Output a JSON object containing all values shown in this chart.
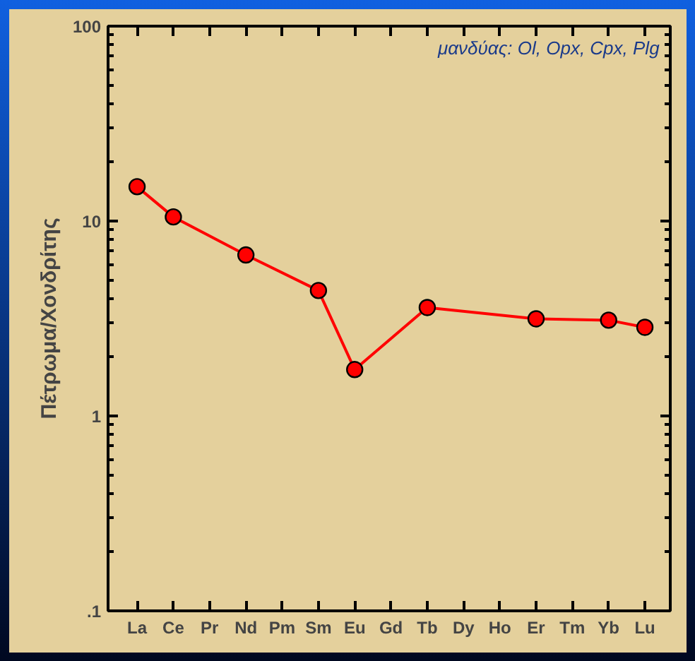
{
  "chart_data": {
    "type": "line",
    "ylabel": "Πέτρωμα/Χονδρίτης",
    "categories": [
      "La",
      "Ce",
      "Pr",
      "Nd",
      "Pm",
      "Sm",
      "Eu",
      "Gd",
      "Tb",
      "Dy",
      "Ho",
      "Er",
      "Tm",
      "Yb",
      "Lu"
    ],
    "series": [
      {
        "color": "#ff0000",
        "values": [
          15.0,
          10.5,
          null,
          6.7,
          null,
          4.4,
          1.73,
          null,
          3.6,
          null,
          null,
          3.15,
          null,
          3.1,
          2.85
        ]
      }
    ],
    "ylim": [
      0.1,
      100
    ],
    "log": true,
    "yticks": [
      {
        "value": 0.1,
        "label": ".1"
      },
      1,
      10,
      100
    ],
    "annotations": [
      "μανδύας: Ol, Opx, Cpx, Plg"
    ],
    "marker": "circle",
    "line_style": "solid",
    "grid": false
  }
}
